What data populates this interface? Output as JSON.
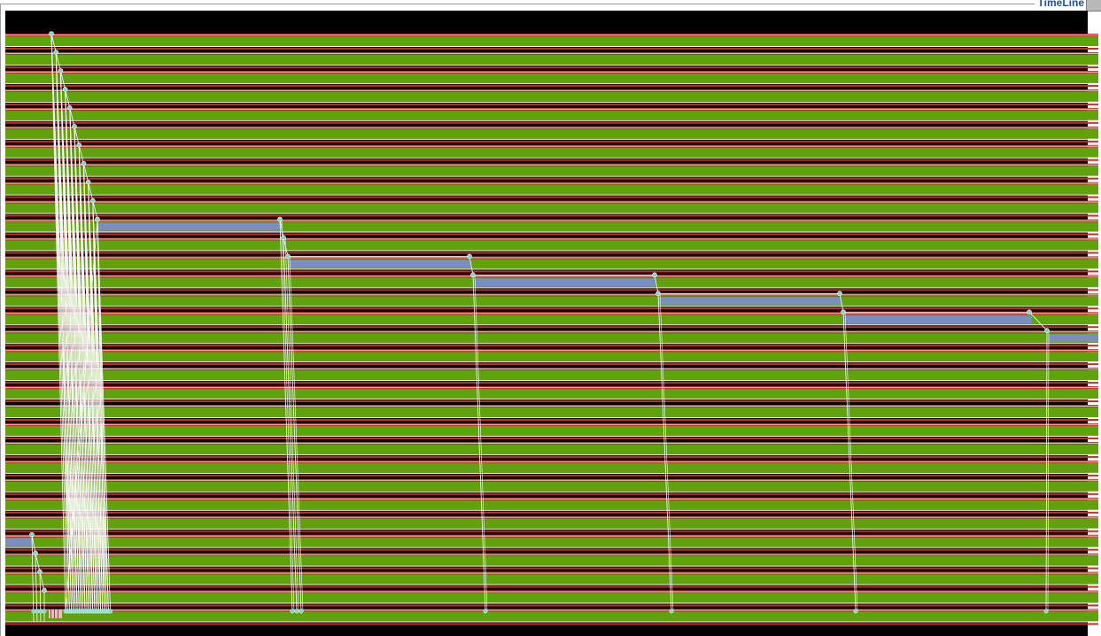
{
  "window": {
    "title": "TimeLine"
  },
  "colors": {
    "background": "#000000",
    "busy": "#5ea30a",
    "idle_stripe_red": "#c22f2f",
    "idle_stripe_light": "#e9c0c0",
    "idle_stripe_white": "#ffffff",
    "overhead": "#7a8fc0",
    "message_line": "#ffffff",
    "event_marker": "#7fd6c9",
    "frame": "#9a9a9a",
    "title": "#1f4fa8"
  },
  "timeline": {
    "processor_rows": 32,
    "long_tasks": [
      {
        "row": 10,
        "start_fraction": 0.085,
        "end_fraction": 0.251
      },
      {
        "row": 12,
        "start_fraction": 0.259,
        "end_fraction": 0.426
      },
      {
        "row": 13,
        "start_fraction": 0.429,
        "end_fraction": 0.595
      },
      {
        "row": 14,
        "start_fraction": 0.597,
        "end_fraction": 0.765
      },
      {
        "row": 15,
        "start_fraction": 0.767,
        "end_fraction": 0.939
      },
      {
        "row": 16,
        "start_fraction": 0.954,
        "end_fraction": 1.0
      },
      {
        "row": 27,
        "start_fraction": 0.0,
        "end_fraction": 0.025
      }
    ]
  }
}
